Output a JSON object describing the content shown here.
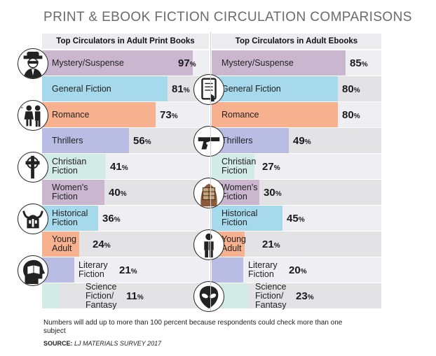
{
  "title": "PRINT & EBOOK FICTION CIRCULATION COMPARISONS",
  "colors": {
    "row_light": "#efeff3",
    "row_dark": "#e3e3e6",
    "mystery": "#cbb6cf",
    "general": "#a6d9ec",
    "romance": "#f7b18f",
    "thrillers": "#b9bde4",
    "christian": "#d3ebe6",
    "womens": "#cbb6cf",
    "historical": "#a6d9ec",
    "young_adult": "#f7b18f",
    "literary": "#b9bde4",
    "scifi": "#d3ebe6"
  },
  "chart_data": {
    "type": "bar",
    "title": "PRINT & EBOOK FICTION CIRCULATION COMPARISONS",
    "categories": [
      "Mystery/Suspense",
      "General Fiction",
      "Romance",
      "Thrillers",
      "Christian Fiction",
      "Women's Fiction",
      "Historical Fiction",
      "Young Adult",
      "Literary Fiction",
      "Science Fiction/ Fantasy"
    ],
    "category_labels": [
      [
        "Mystery/Suspense"
      ],
      [
        "General Fiction"
      ],
      [
        "Romance"
      ],
      [
        "Thrillers"
      ],
      [
        "Christian",
        "Fiction"
      ],
      [
        "Women's",
        "Fiction"
      ],
      [
        "Historical",
        "Fiction"
      ],
      [
        "Young",
        "Adult"
      ],
      [
        "Literary",
        "Fiction"
      ],
      [
        "Science",
        "Fiction/",
        "Fantasy"
      ]
    ],
    "series": [
      {
        "name": "Top Circulators in Adult Print Books",
        "values": [
          97,
          81,
          73,
          56,
          41,
          40,
          36,
          24,
          21,
          11
        ]
      },
      {
        "name": "Top Circulators in Adult Ebooks",
        "values": [
          85,
          80,
          80,
          49,
          27,
          30,
          45,
          21,
          20,
          23
        ]
      }
    ],
    "unit": "%",
    "ylim": [
      0,
      100
    ]
  },
  "footnote": "Numbers will add up to more than 100 percent because respondents could check more than one subject",
  "source_label": "SOURCE:",
  "source_text": "LJ MATERIALS SURVEY 2017",
  "icons": [
    "spy-icon",
    "ebook-reader-icon",
    "couple-icon",
    "pistol-icon",
    "cross-icon",
    "reading-woman-icon",
    "viking-helmet-icon",
    "teen-icon",
    "head-book-icon",
    "alien-icon"
  ]
}
